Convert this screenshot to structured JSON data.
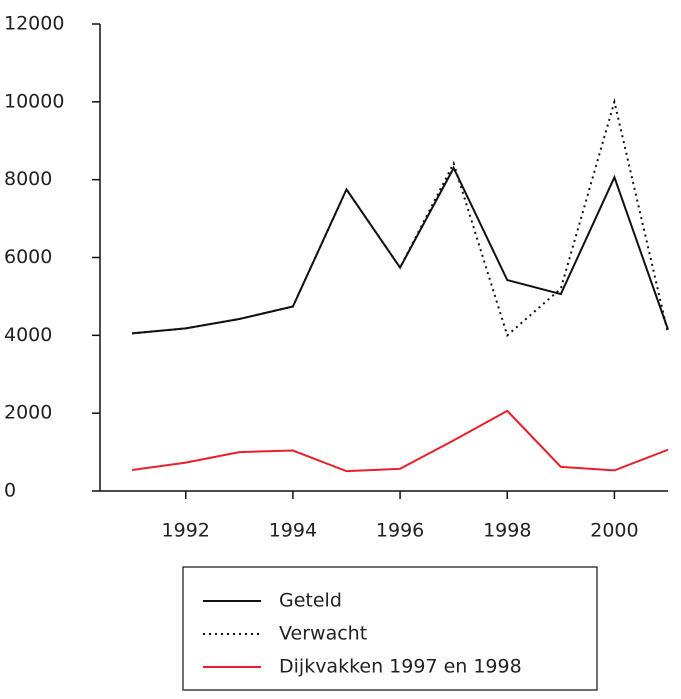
{
  "chart_data": {
    "type": "line",
    "x": [
      1991,
      1992,
      1993,
      1994,
      1995,
      1996,
      1997,
      1998,
      1999,
      2000,
      2001
    ],
    "series": [
      {
        "name": "Geteld",
        "color": "#111111",
        "dash": "solid",
        "values": [
          4050,
          4180,
          4420,
          4740,
          7750,
          5740,
          8300,
          5420,
          5060,
          8060,
          4150
        ]
      },
      {
        "name": "Verwacht",
        "color": "#111111",
        "dash": "dotted",
        "values": [
          4050,
          4180,
          4420,
          4740,
          7750,
          5740,
          8420,
          4000,
          5200,
          10000,
          4050
        ]
      },
      {
        "name": "Dijkvakken 1997 en 1998",
        "color": "#e8202a",
        "dash": "solid",
        "values": [
          540,
          730,
          1000,
          1040,
          510,
          570,
          1300,
          2060,
          620,
          530,
          1060
        ]
      }
    ],
    "xlim": [
      1990.4,
      2001
    ],
    "xticks": [
      1992,
      1994,
      1996,
      1998,
      2000
    ],
    "ylim": [
      0,
      12000
    ],
    "yticks": [
      0,
      2000,
      4000,
      6000,
      8000,
      10000,
      12000
    ],
    "legend": "bottom-center"
  }
}
